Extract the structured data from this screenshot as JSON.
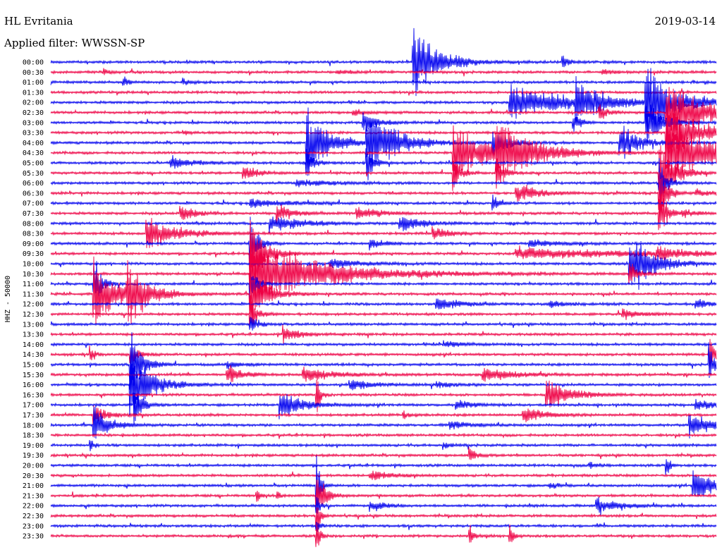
{
  "chart_data": {
    "type": "line",
    "title": "HL Evritania",
    "subtitle": "Applied filter: WWSSN-SP",
    "date": "2019-03-14",
    "ylabel": "HHZ - 50000",
    "xlabel": "",
    "colors": [
      "#0000ee",
      "#ee0044"
    ],
    "traces": [
      {
        "label": "00:00",
        "color": 0,
        "events": [
          {
            "t": 0.545,
            "a": 1.0,
            "d": 0.035
          },
          {
            "t": 0.77,
            "a": 0.15,
            "d": 0.01
          }
        ]
      },
      {
        "label": "00:30",
        "color": 1,
        "events": [
          {
            "t": 0.08,
            "a": 0.08,
            "d": 0.01
          },
          {
            "t": 0.43,
            "a": 0.06,
            "d": 0.02
          },
          {
            "t": 0.83,
            "a": 0.07,
            "d": 0.02
          }
        ]
      },
      {
        "label": "01:00",
        "color": 0,
        "events": [
          {
            "t": 0.11,
            "a": 0.12,
            "d": 0.01
          },
          {
            "t": 0.2,
            "a": 0.08,
            "d": 0.01
          }
        ]
      },
      {
        "label": "01:30",
        "color": 1,
        "events": []
      },
      {
        "label": "02:00",
        "color": 0,
        "events": [
          {
            "t": 0.69,
            "a": 0.5,
            "d": 0.08
          },
          {
            "t": 0.79,
            "a": 0.6,
            "d": 0.03
          },
          {
            "t": 0.895,
            "a": 1.0,
            "d": 0.04
          }
        ]
      },
      {
        "label": "02:30",
        "color": 1,
        "events": [
          {
            "t": 0.455,
            "a": 0.08,
            "d": 0.02
          },
          {
            "t": 0.825,
            "a": 0.25,
            "d": 0.01
          },
          {
            "t": 0.925,
            "a": 1.0,
            "d": 0.05
          }
        ]
      },
      {
        "label": "03:00",
        "color": 0,
        "events": [
          {
            "t": 0.47,
            "a": 0.3,
            "d": 0.02
          },
          {
            "t": 0.785,
            "a": 0.3,
            "d": 0.01
          },
          {
            "t": 0.895,
            "a": 0.8,
            "d": 0.02
          }
        ]
      },
      {
        "label": "03:30",
        "color": 1,
        "events": [
          {
            "t": 0.2,
            "a": 0.05,
            "d": 0.01
          },
          {
            "t": 0.925,
            "a": 1.0,
            "d": 0.04
          }
        ]
      },
      {
        "label": "04:00",
        "color": 0,
        "events": [
          {
            "t": 0.385,
            "a": 1.0,
            "d": 0.03
          },
          {
            "t": 0.475,
            "a": 1.0,
            "d": 0.04
          },
          {
            "t": 0.665,
            "a": 0.5,
            "d": 0.02
          },
          {
            "t": 0.855,
            "a": 0.6,
            "d": 0.025
          }
        ]
      },
      {
        "label": "04:30",
        "color": 1,
        "events": [
          {
            "t": 0.605,
            "a": 0.8,
            "d": 0.05
          },
          {
            "t": 0.67,
            "a": 0.9,
            "d": 0.05
          },
          {
            "t": 0.925,
            "a": 1.0,
            "d": 0.06
          }
        ]
      },
      {
        "label": "05:00",
        "color": 0,
        "events": [
          {
            "t": 0.18,
            "a": 0.2,
            "d": 0.03
          },
          {
            "t": 0.385,
            "a": 0.4,
            "d": 0.01
          },
          {
            "t": 0.475,
            "a": 0.5,
            "d": 0.01
          }
        ]
      },
      {
        "label": "05:30",
        "color": 1,
        "events": [
          {
            "t": 0.29,
            "a": 0.2,
            "d": 0.02
          },
          {
            "t": 0.605,
            "a": 0.5,
            "d": 0.01
          },
          {
            "t": 0.67,
            "a": 0.5,
            "d": 0.01
          },
          {
            "t": 0.915,
            "a": 1.0,
            "d": 0.02
          }
        ]
      },
      {
        "label": "06:00",
        "color": 0,
        "events": [
          {
            "t": 0.37,
            "a": 0.1,
            "d": 0.05
          },
          {
            "t": 0.915,
            "a": 0.7,
            "d": 0.01
          }
        ]
      },
      {
        "label": "06:30",
        "color": 1,
        "events": [
          {
            "t": 0.7,
            "a": 0.25,
            "d": 0.03
          },
          {
            "t": 0.915,
            "a": 0.9,
            "d": 0.01
          },
          {
            "t": 0.97,
            "a": 0.1,
            "d": 0.02
          }
        ]
      },
      {
        "label": "07:00",
        "color": 0,
        "events": [
          {
            "t": 0.3,
            "a": 0.12,
            "d": 0.05
          },
          {
            "t": 0.665,
            "a": 0.25,
            "d": 0.01
          }
        ]
      },
      {
        "label": "07:30",
        "color": 1,
        "events": [
          {
            "t": 0.195,
            "a": 0.25,
            "d": 0.02
          },
          {
            "t": 0.34,
            "a": 0.3,
            "d": 0.02
          },
          {
            "t": 0.46,
            "a": 0.2,
            "d": 0.03
          },
          {
            "t": 0.915,
            "a": 0.8,
            "d": 0.01
          },
          {
            "t": 0.95,
            "a": 0.1,
            "d": 0.02
          }
        ]
      },
      {
        "label": "08:00",
        "color": 0,
        "events": [
          {
            "t": 0.33,
            "a": 0.25,
            "d": 0.04
          },
          {
            "t": 0.525,
            "a": 0.25,
            "d": 0.03
          }
        ]
      },
      {
        "label": "08:30",
        "color": 1,
        "events": [
          {
            "t": 0.145,
            "a": 0.5,
            "d": 0.04
          },
          {
            "t": 0.575,
            "a": 0.2,
            "d": 0.02
          }
        ]
      },
      {
        "label": "09:00",
        "color": 0,
        "events": [
          {
            "t": 0.3,
            "a": 0.9,
            "d": 0.01
          },
          {
            "t": 0.48,
            "a": 0.15,
            "d": 0.02
          },
          {
            "t": 0.72,
            "a": 0.12,
            "d": 0.04
          }
        ]
      },
      {
        "label": "09:30",
        "color": 1,
        "events": [
          {
            "t": 0.3,
            "a": 1.0,
            "d": 0.02
          },
          {
            "t": 0.7,
            "a": 0.15,
            "d": 0.2
          },
          {
            "t": 0.91,
            "a": 0.2,
            "d": 0.03
          }
        ]
      },
      {
        "label": "10:00",
        "color": 0,
        "events": [
          {
            "t": 0.42,
            "a": 0.12,
            "d": 0.05
          },
          {
            "t": 0.87,
            "a": 1.0,
            "d": 0.03
          }
        ]
      },
      {
        "label": "10:30",
        "color": 1,
        "events": [
          {
            "t": 0.3,
            "a": 1.0,
            "d": 0.1
          },
          {
            "t": 0.87,
            "a": 0.4,
            "d": 0.01
          }
        ]
      },
      {
        "label": "11:00",
        "color": 0,
        "events": [
          {
            "t": 0.065,
            "a": 0.8,
            "d": 0.01
          },
          {
            "t": 0.3,
            "a": 0.5,
            "d": 0.01
          }
        ]
      },
      {
        "label": "11:30",
        "color": 1,
        "events": [
          {
            "t": 0.065,
            "a": 1.0,
            "d": 0.03
          },
          {
            "t": 0.115,
            "a": 0.8,
            "d": 0.03
          },
          {
            "t": 0.3,
            "a": 1.0,
            "d": 0.02
          }
        ]
      },
      {
        "label": "12:00",
        "color": 0,
        "events": [
          {
            "t": 0.58,
            "a": 0.2,
            "d": 0.03
          },
          {
            "t": 0.75,
            "a": 0.1,
            "d": 0.02
          },
          {
            "t": 0.97,
            "a": 0.15,
            "d": 0.02
          }
        ]
      },
      {
        "label": "12:30",
        "color": 1,
        "events": [
          {
            "t": 0.3,
            "a": 0.5,
            "d": 0.01
          },
          {
            "t": 0.86,
            "a": 0.15,
            "d": 0.02
          }
        ]
      },
      {
        "label": "13:00",
        "color": 0,
        "events": [
          {
            "t": 0.3,
            "a": 0.3,
            "d": 0.01
          }
        ]
      },
      {
        "label": "13:30",
        "color": 1,
        "events": [
          {
            "t": 0.35,
            "a": 0.25,
            "d": 0.02
          }
        ]
      },
      {
        "label": "14:00",
        "color": 0,
        "events": [
          {
            "t": 0.59,
            "a": 0.08,
            "d": 0.03
          }
        ]
      },
      {
        "label": "14:30",
        "color": 1,
        "events": [
          {
            "t": 0.06,
            "a": 0.3,
            "d": 0.005
          },
          {
            "t": 0.12,
            "a": 0.4,
            "d": 0.01
          },
          {
            "t": 0.99,
            "a": 0.9,
            "d": 0.005
          }
        ]
      },
      {
        "label": "15:00",
        "color": 0,
        "events": [
          {
            "t": 0.12,
            "a": 1.0,
            "d": 0.015
          },
          {
            "t": 0.265,
            "a": 0.1,
            "d": 0.02
          },
          {
            "t": 0.99,
            "a": 0.8,
            "d": 0.005
          }
        ]
      },
      {
        "label": "15:30",
        "color": 1,
        "events": [
          {
            "t": 0.265,
            "a": 0.3,
            "d": 0.02
          },
          {
            "t": 0.38,
            "a": 0.2,
            "d": 0.04
          },
          {
            "t": 0.65,
            "a": 0.2,
            "d": 0.04
          }
        ]
      },
      {
        "label": "16:00",
        "color": 0,
        "events": [
          {
            "t": 0.12,
            "a": 1.0,
            "d": 0.03
          },
          {
            "t": 0.45,
            "a": 0.15,
            "d": 0.03
          },
          {
            "t": 0.58,
            "a": 0.1,
            "d": 0.02
          }
        ]
      },
      {
        "label": "16:30",
        "color": 1,
        "events": [
          {
            "t": 0.745,
            "a": 0.5,
            "d": 0.03
          },
          {
            "t": 0.4,
            "a": 0.6,
            "d": 0.005
          }
        ]
      },
      {
        "label": "17:00",
        "color": 0,
        "events": [
          {
            "t": 0.125,
            "a": 0.7,
            "d": 0.01
          },
          {
            "t": 0.345,
            "a": 0.45,
            "d": 0.03
          },
          {
            "t": 0.61,
            "a": 0.15,
            "d": 0.02
          },
          {
            "t": 0.97,
            "a": 0.15,
            "d": 0.03
          }
        ]
      },
      {
        "label": "17:30",
        "color": 1,
        "events": [
          {
            "t": 0.065,
            "a": 0.25,
            "d": 0.02
          },
          {
            "t": 0.53,
            "a": 0.1,
            "d": 0.01
          },
          {
            "t": 0.71,
            "a": 0.25,
            "d": 0.03
          }
        ]
      },
      {
        "label": "18:00",
        "color": 0,
        "events": [
          {
            "t": 0.065,
            "a": 0.5,
            "d": 0.02
          },
          {
            "t": 0.6,
            "a": 0.12,
            "d": 0.03
          },
          {
            "t": 0.96,
            "a": 0.4,
            "d": 0.03
          }
        ]
      },
      {
        "label": "18:30",
        "color": 1,
        "events": []
      },
      {
        "label": "19:00",
        "color": 0,
        "events": [
          {
            "t": 0.06,
            "a": 0.2,
            "d": 0.005
          },
          {
            "t": 0.59,
            "a": 0.1,
            "d": 0.01
          }
        ]
      },
      {
        "label": "19:30",
        "color": 1,
        "events": [
          {
            "t": 0.63,
            "a": 0.2,
            "d": 0.01
          }
        ]
      },
      {
        "label": "20:00",
        "color": 0,
        "events": [
          {
            "t": 0.925,
            "a": 0.35,
            "d": 0.005
          },
          {
            "t": 0.81,
            "a": 0.1,
            "d": 0.01
          }
        ]
      },
      {
        "label": "20:30",
        "color": 1,
        "events": [
          {
            "t": 0.48,
            "a": 0.12,
            "d": 0.03
          }
        ]
      },
      {
        "label": "21:00",
        "color": 0,
        "events": [
          {
            "t": 0.4,
            "a": 1.0,
            "d": 0.005
          },
          {
            "t": 0.75,
            "a": 0.1,
            "d": 0.01
          },
          {
            "t": 0.965,
            "a": 0.6,
            "d": 0.025
          }
        ]
      },
      {
        "label": "21:30",
        "color": 1,
        "events": [
          {
            "t": 0.4,
            "a": 1.0,
            "d": 0.01
          },
          {
            "t": 0.31,
            "a": 0.2,
            "d": 0.005
          },
          {
            "t": 0.34,
            "a": 0.12,
            "d": 0.005
          }
        ]
      },
      {
        "label": "22:00",
        "color": 0,
        "events": [
          {
            "t": 0.48,
            "a": 0.15,
            "d": 0.02
          },
          {
            "t": 0.82,
            "a": 0.25,
            "d": 0.03
          },
          {
            "t": 0.4,
            "a": 0.3,
            "d": 0.005
          }
        ]
      },
      {
        "label": "22:30",
        "color": 1,
        "events": [
          {
            "t": 0.4,
            "a": 0.6,
            "d": 0.005
          }
        ]
      },
      {
        "label": "23:00",
        "color": 0,
        "events": [
          {
            "t": 0.4,
            "a": 0.2,
            "d": 0.005
          }
        ]
      },
      {
        "label": "23:30",
        "color": 1,
        "events": [
          {
            "t": 0.63,
            "a": 0.3,
            "d": 0.005
          },
          {
            "t": 0.69,
            "a": 0.3,
            "d": 0.005
          },
          {
            "t": 0.4,
            "a": 0.4,
            "d": 0.005
          }
        ]
      }
    ]
  }
}
